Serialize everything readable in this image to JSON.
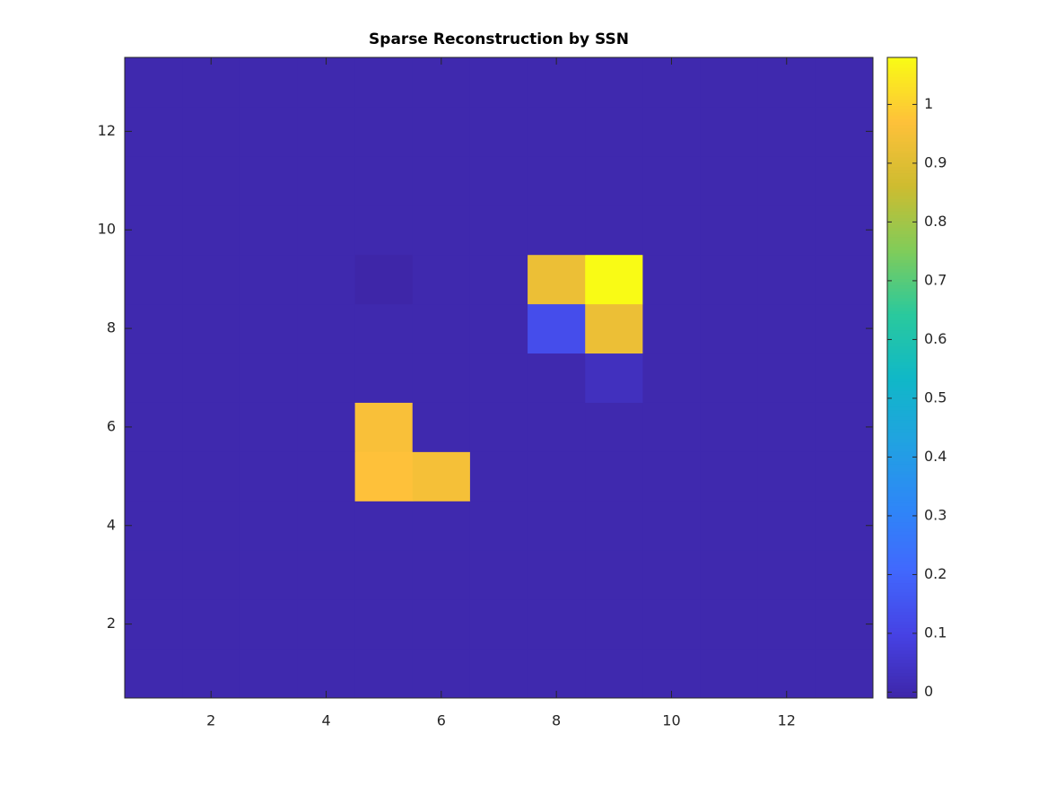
{
  "chart_data": {
    "type": "heatmap",
    "title": "Sparse Reconstruction by SSN",
    "xlim": [
      0.5,
      13.5
    ],
    "ylim": [
      0.5,
      13.5
    ],
    "xticks": [
      2,
      4,
      6,
      8,
      10,
      12
    ],
    "yticks": [
      2,
      4,
      6,
      8,
      10,
      12
    ],
    "values": [
      [
        0,
        0,
        0,
        0,
        0,
        0,
        0,
        0,
        0,
        0,
        0,
        0,
        0
      ],
      [
        0,
        0,
        0,
        0,
        0,
        0,
        0,
        0,
        0,
        0,
        0,
        0,
        0
      ],
      [
        0,
        0,
        0,
        0,
        0,
        0,
        0,
        0,
        0,
        0,
        0,
        0,
        0
      ],
      [
        0,
        0,
        0,
        0,
        0,
        0,
        0,
        0,
        0,
        0,
        0,
        0,
        0
      ],
      [
        0,
        0,
        0,
        0,
        0.97,
        0.95,
        0,
        0,
        0,
        0,
        0,
        0,
        0
      ],
      [
        0,
        0,
        0,
        0,
        0.96,
        0,
        0,
        0,
        0,
        0,
        0,
        0,
        0
      ],
      [
        0,
        0,
        0,
        0,
        0,
        0,
        0,
        0,
        0.03,
        0,
        0,
        0,
        0
      ],
      [
        0,
        0,
        0,
        0,
        0,
        0,
        0,
        0.13,
        0.93,
        0,
        0,
        0,
        0
      ],
      [
        0,
        0,
        0,
        0,
        -0.01,
        0,
        0,
        0.93,
        1.08,
        0,
        0,
        0,
        0
      ],
      [
        0,
        0,
        0,
        0,
        0,
        0,
        0,
        0,
        0,
        0,
        0,
        0,
        0
      ],
      [
        0,
        0,
        0,
        0,
        0,
        0,
        0,
        0,
        0,
        0,
        0,
        0,
        0
      ],
      [
        0,
        0,
        0,
        0,
        0,
        0,
        0,
        0,
        0,
        0,
        0,
        0,
        0
      ],
      [
        0,
        0,
        0,
        0,
        0,
        0,
        0,
        0,
        0,
        0,
        0,
        0,
        0
      ]
    ],
    "colormap": "parula",
    "clim": [
      -0.01,
      1.08
    ],
    "cticks": [
      0,
      0.1,
      0.2,
      0.3,
      0.4,
      0.5,
      0.6,
      0.7,
      0.8,
      0.9,
      1
    ]
  }
}
